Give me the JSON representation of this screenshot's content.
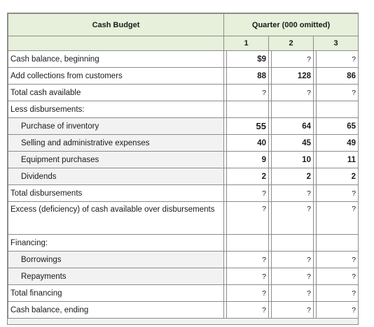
{
  "header": {
    "title": "Cash Budget",
    "quarter_heading": "Quarter (000 omitted)",
    "quarters": [
      "1",
      "2",
      "3"
    ]
  },
  "rows": [
    {
      "label": "Cash balance, beginning",
      "v1": "$9",
      "v2": "?",
      "v3": "?"
    },
    {
      "label": "Add collections from customers",
      "v1": "88",
      "v2": "128",
      "v3": "86"
    },
    {
      "label": "Total cash available",
      "v1": "?",
      "v2": "?",
      "v3": "?"
    },
    {
      "label": "Less disbursements:",
      "v1": "",
      "v2": "",
      "v3": ""
    },
    {
      "label": "Purchase of inventory",
      "v1": "55",
      "v2": "64",
      "v3": "65"
    },
    {
      "label": "Selling and administrative expenses",
      "v1": "40",
      "v2": "45",
      "v3": "49"
    },
    {
      "label": "Equipment purchases",
      "v1": "9",
      "v2": "10",
      "v3": "11"
    },
    {
      "label": "Dividends",
      "v1": "2",
      "v2": "2",
      "v3": "2"
    },
    {
      "label": "Total disbursements",
      "v1": "?",
      "v2": "?",
      "v3": "?"
    },
    {
      "label": "Excess (deficiency) of cash available over disbursements",
      "v1": "?",
      "v2": "?",
      "v3": "?"
    },
    {
      "label": "Financing:",
      "v1": "",
      "v2": "",
      "v3": ""
    },
    {
      "label": "Borrowings",
      "v1": "?",
      "v2": "?",
      "v3": "?"
    },
    {
      "label": "Repayments",
      "v1": "?",
      "v2": "?",
      "v3": "?"
    },
    {
      "label": "Total financing",
      "v1": "?",
      "v2": "?",
      "v3": "?"
    },
    {
      "label": "Cash balance, ending",
      "v1": "?",
      "v2": "?",
      "v3": "?"
    }
  ]
}
